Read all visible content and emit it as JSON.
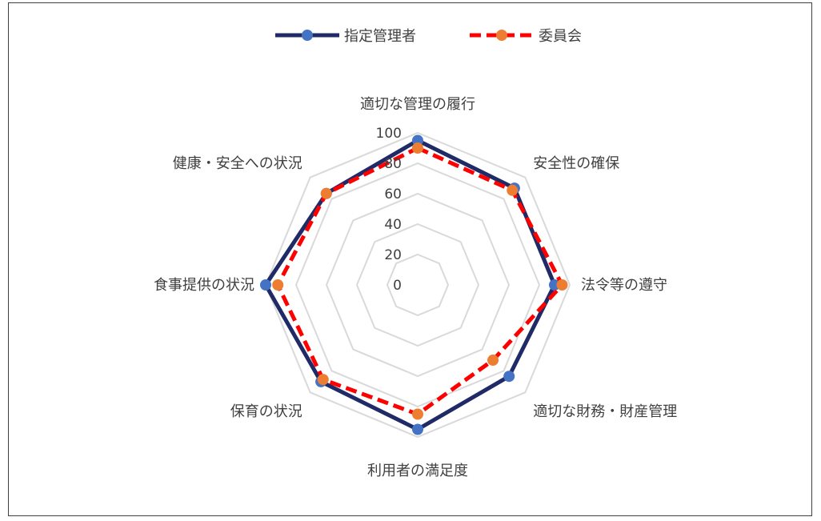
{
  "chart_data": {
    "type": "radar",
    "title": "",
    "categories": [
      "適切な管理の履行",
      "安全性の確保",
      "法令等の遵守",
      "適切な財務・財産管理",
      "利用者の満足度",
      "保育の状況",
      "食事提供の状況",
      "健康・安全への状況"
    ],
    "ticks": [
      "0",
      "20",
      "40",
      "60",
      "80",
      "100"
    ],
    "rlim": [
      0,
      100
    ],
    "grid": true,
    "legend_position": "top",
    "series": [
      {
        "name": "指定管理者",
        "values": [
          95,
          90,
          90,
          85,
          95,
          90,
          100,
          85
        ],
        "color": "#1f2a66",
        "marker_color": "#4472c4",
        "dash": "solid"
      },
      {
        "name": "委員会",
        "values": [
          90,
          88,
          95,
          70,
          85,
          88,
          92,
          85
        ],
        "color": "#ff0000",
        "marker_color": "#ed7d31",
        "dash": "dashed"
      }
    ]
  }
}
